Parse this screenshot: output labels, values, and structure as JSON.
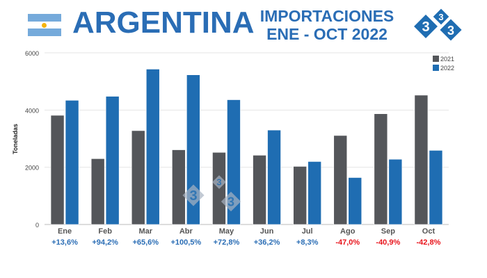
{
  "header": {
    "title": "ARGENTINA",
    "subtitle_line1": "IMPORTACIONES",
    "subtitle_line2": "ENE - OCT 2022",
    "logo_text": "3"
  },
  "colors": {
    "2021": "#54565a",
    "2022": "#1f6db2",
    "positive": "#2a6db5",
    "negative": "#e8141c",
    "flag_blue": "#75aadb"
  },
  "chart_data": {
    "type": "bar",
    "ylabel": "Toneladas",
    "ylim": [
      0,
      6000
    ],
    "yticks": [
      0,
      2000,
      4000,
      6000
    ],
    "grid": true,
    "legend_position": "top-right",
    "categories": [
      "Ene",
      "Feb",
      "Mar",
      "Abr",
      "May",
      "Jun",
      "Jul",
      "Ago",
      "Sep",
      "Oct"
    ],
    "series": [
      {
        "name": "2021",
        "values": [
          3815,
          2300,
          3280,
          2610,
          2520,
          2420,
          2030,
          3110,
          3870,
          4520
        ]
      },
      {
        "name": "2022",
        "values": [
          4340,
          4480,
          5430,
          5230,
          4360,
          3300,
          2200,
          1640,
          2280,
          2590
        ]
      }
    ],
    "annotations": [
      "+13,6%",
      "+94,2%",
      "+65,6%",
      "+100,5%",
      "+72,8%",
      "+36,2%",
      "+8,3%",
      "-47,0%",
      "-40,9%",
      "-42,8%"
    ]
  }
}
